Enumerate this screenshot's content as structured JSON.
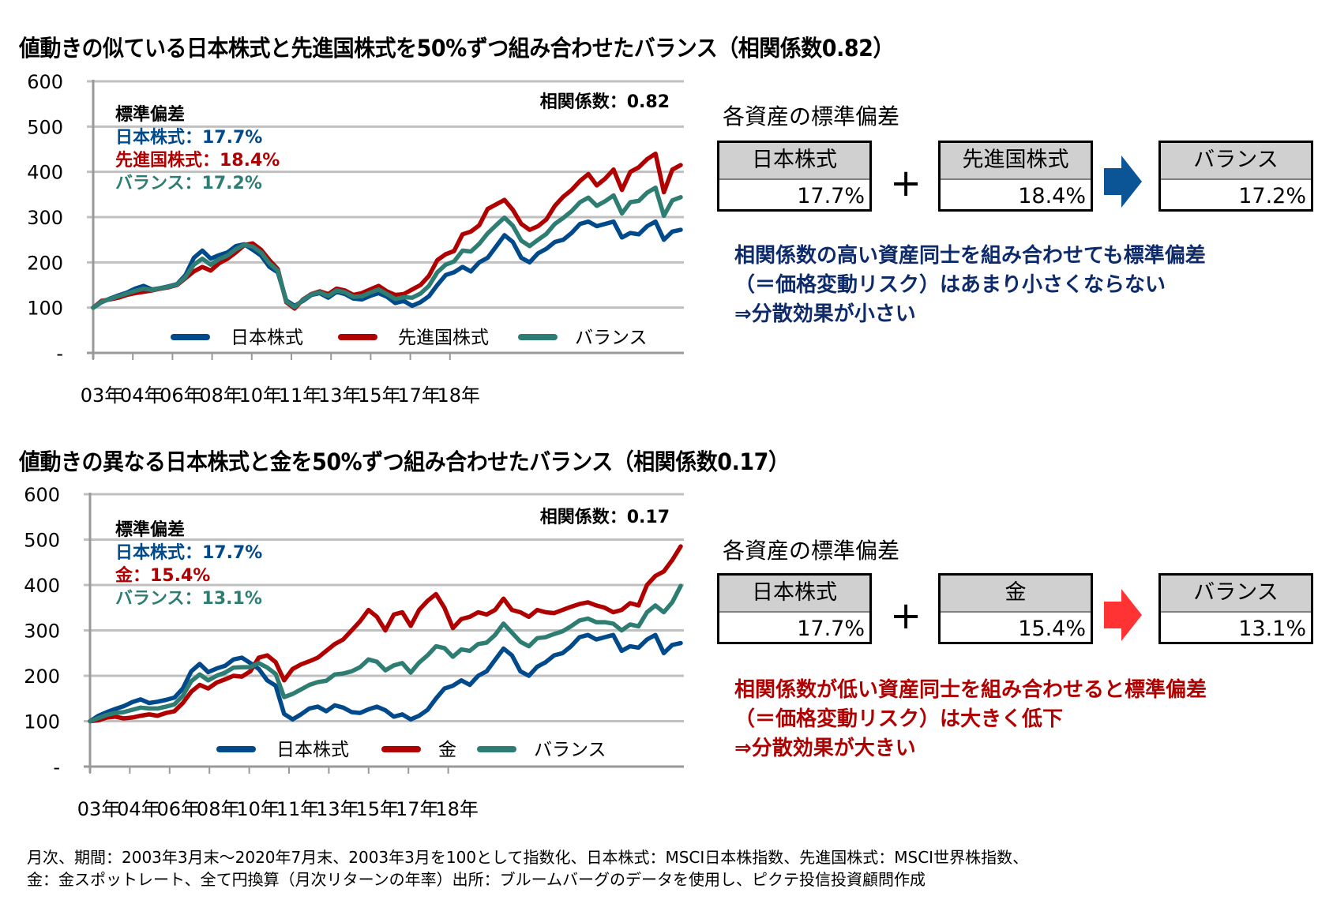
{
  "colors": {
    "japan": "#004a8c",
    "developed": "#b00000",
    "gold": "#b00000",
    "balance": "#2e7d72",
    "grid": "#c0c0c0",
    "axis": "#999999",
    "arrow_blue": "#0b5596",
    "arrow_red": "#ff3333",
    "message_blue": "#0d2a6b",
    "message_red": "#b00000",
    "box_header": "#d0d0d0"
  },
  "section1": {
    "title": "値動きの似ている日本株式と先進国株式を50%ずつ組み合わせたバランス（相関係数0.82）",
    "panel_title": "各資産の標準偏差",
    "boxes": [
      {
        "label": "日本株式",
        "value": "17.7%"
      },
      {
        "label": "先進国株式",
        "value": "18.4%"
      },
      {
        "label": "バランス",
        "value": "17.2%"
      }
    ],
    "plus": "+",
    "message_lines": [
      "相関係数の高い資産同士を組み合わせても標準偏差",
      "（＝価格変動リスク）はあまり小さくならない",
      "⇒分散効果が小さい"
    ]
  },
  "section2": {
    "title": "値動きの異なる日本株式と金を50%ずつ組み合わせたバランス（相関係数0.17）",
    "panel_title": "各資産の標準偏差",
    "boxes": [
      {
        "label": "日本株式",
        "value": "17.7%"
      },
      {
        "label": "金",
        "value": "15.4%"
      },
      {
        "label": "バランス",
        "value": "13.1%"
      }
    ],
    "plus": "+",
    "message_lines": [
      "相関係数が低い資産同士を組み合わせると標準偏差",
      "（＝価格変動リスク）は大きく低下",
      "⇒分散効果が大きい"
    ]
  },
  "footnote_lines": [
    "月次、期間：2003年3月末～2020年7月末、2003年3月を100として指数化、日本株式：MSCI日本株指数、先進国株式：MSCI世界株指数、",
    "金：金スポットレート、全て円換算（月次リターンの年率）出所：ブルームバーグのデータを使用し、ピクテ投信投資顧問作成"
  ],
  "chart_data": [
    {
      "type": "line",
      "title": "値動きの似ている日本株式と先進国株式を50%ずつ組み合わせたバランス",
      "xlabel": "",
      "ylabel": "",
      "x_range": [
        "2003-03",
        "2020-07"
      ],
      "x_sampling": "quarterly (approx.)",
      "x_tick_labels": [
        "03年",
        "04年",
        "06年",
        "08年",
        "10年",
        "11年",
        "13年",
        "15年",
        "17年",
        "18年"
      ],
      "y_tick_labels": [
        "-",
        "100",
        "200",
        "300",
        "400",
        "500",
        "600"
      ],
      "ylim": [
        0,
        600
      ],
      "grid": true,
      "legend_position": "bottom-inside",
      "annotations": {
        "correlation": "相関係数：0.82",
        "stdev_header": "標準偏差",
        "stdev_lines": [
          {
            "text": "日本株式：17.7%",
            "series": "japan"
          },
          {
            "text": "先進国株式：18.4%",
            "series": "developed"
          },
          {
            "text": "バランス：17.2%",
            "series": "balance"
          }
        ]
      },
      "series": [
        {
          "key": "japan",
          "name": "日本株式",
          "values": [
            100,
            112,
            120,
            127,
            133,
            142,
            148,
            140,
            143,
            147,
            152,
            172,
            210,
            226,
            208,
            216,
            222,
            236,
            240,
            228,
            215,
            190,
            178,
            116,
            104,
            115,
            128,
            132,
            122,
            135,
            130,
            120,
            118,
            126,
            132,
            124,
            110,
            115,
            104,
            112,
            125,
            150,
            172,
            178,
            190,
            180,
            200,
            210,
            235,
            260,
            245,
            210,
            200,
            220,
            230,
            245,
            250,
            265,
            285,
            290,
            280,
            285,
            290,
            255,
            265,
            262,
            280,
            290,
            250,
            268,
            272
          ]
        },
        {
          "key": "developed",
          "name": "先進国株式",
          "values": [
            100,
            115,
            118,
            122,
            128,
            132,
            135,
            138,
            142,
            145,
            150,
            165,
            180,
            190,
            182,
            198,
            208,
            222,
            238,
            242,
            228,
            205,
            185,
            112,
            98,
            118,
            130,
            136,
            130,
            142,
            138,
            128,
            132,
            140,
            148,
            136,
            128,
            130,
            140,
            150,
            170,
            205,
            218,
            225,
            262,
            268,
            282,
            318,
            328,
            338,
            316,
            285,
            272,
            280,
            295,
            325,
            345,
            360,
            380,
            395,
            370,
            385,
            405,
            360,
            400,
            410,
            428,
            440,
            355,
            405,
            415
          ]
        },
        {
          "key": "balance",
          "name": "バランス",
          "values": [
            100,
            113,
            119,
            125,
            131,
            137,
            142,
            139,
            143,
            146,
            151,
            168,
            195,
            208,
            195,
            207,
            215,
            229,
            239,
            235,
            222,
            198,
            182,
            114,
            101,
            117,
            129,
            134,
            126,
            138,
            134,
            124,
            125,
            133,
            140,
            130,
            119,
            123,
            122,
            131,
            148,
            178,
            195,
            202,
            226,
            224,
            241,
            264,
            282,
            299,
            281,
            248,
            236,
            250,
            263,
            285,
            298,
            313,
            333,
            343,
            325,
            335,
            348,
            308,
            333,
            336,
            354,
            365,
            303,
            337,
            344
          ]
        }
      ]
    },
    {
      "type": "line",
      "title": "値動きの異なる日本株式と金を50%ずつ組み合わせたバランス",
      "xlabel": "",
      "ylabel": "",
      "x_range": [
        "2003-03",
        "2020-07"
      ],
      "x_sampling": "quarterly (approx.)",
      "x_tick_labels": [
        "03年",
        "04年",
        "06年",
        "08年",
        "10年",
        "11年",
        "13年",
        "15年",
        "17年",
        "18年"
      ],
      "y_tick_labels": [
        "-",
        "100",
        "200",
        "300",
        "400",
        "500",
        "600"
      ],
      "ylim": [
        0,
        600
      ],
      "grid": true,
      "legend_position": "bottom-inside",
      "annotations": {
        "correlation": "相関係数：0.17",
        "stdev_header": "標準偏差",
        "stdev_lines": [
          {
            "text": "日本株式：17.7%",
            "series": "japan"
          },
          {
            "text": "金：15.4%",
            "series": "gold"
          },
          {
            "text": "バランス：13.1%",
            "series": "balance"
          }
        ]
      },
      "series": [
        {
          "key": "japan",
          "name": "日本株式",
          "values": [
            100,
            112,
            120,
            127,
            133,
            142,
            148,
            140,
            143,
            147,
            152,
            172,
            210,
            226,
            208,
            216,
            222,
            236,
            240,
            228,
            215,
            190,
            178,
            116,
            104,
            115,
            128,
            132,
            122,
            135,
            130,
            120,
            118,
            126,
            132,
            124,
            110,
            115,
            104,
            112,
            125,
            150,
            172,
            178,
            190,
            180,
            200,
            210,
            235,
            260,
            245,
            210,
            200,
            220,
            230,
            245,
            250,
            265,
            285,
            290,
            280,
            285,
            290,
            255,
            265,
            262,
            280,
            290,
            250,
            268,
            272
          ]
        },
        {
          "key": "gold",
          "name": "金",
          "values": [
            100,
            102,
            108,
            110,
            106,
            108,
            112,
            115,
            112,
            118,
            122,
            140,
            165,
            180,
            172,
            185,
            192,
            200,
            198,
            210,
            240,
            245,
            230,
            190,
            215,
            225,
            232,
            240,
            255,
            270,
            280,
            300,
            320,
            345,
            330,
            300,
            335,
            340,
            310,
            345,
            365,
            380,
            350,
            305,
            325,
            330,
            340,
            335,
            345,
            370,
            345,
            340,
            330,
            345,
            340,
            338,
            345,
            352,
            358,
            362,
            355,
            350,
            340,
            345,
            360,
            355,
            400,
            420,
            430,
            455,
            485
          ]
        },
        {
          "key": "balance",
          "name": "バランス",
          "values": [
            100,
            107,
            114,
            118,
            120,
            125,
            130,
            128,
            128,
            132,
            137,
            156,
            188,
            203,
            190,
            200,
            207,
            218,
            219,
            219,
            228,
            218,
            204,
            153,
            160,
            170,
            180,
            186,
            189,
            203,
            205,
            210,
            219,
            236,
            231,
            212,
            223,
            228,
            207,
            229,
            245,
            265,
            261,
            242,
            258,
            255,
            270,
            273,
            290,
            315,
            295,
            275,
            265,
            283,
            285,
            292,
            298,
            309,
            322,
            326,
            318,
            318,
            315,
            300,
            313,
            309,
            340,
            355,
            340,
            362,
            398
          ]
        }
      ]
    }
  ]
}
